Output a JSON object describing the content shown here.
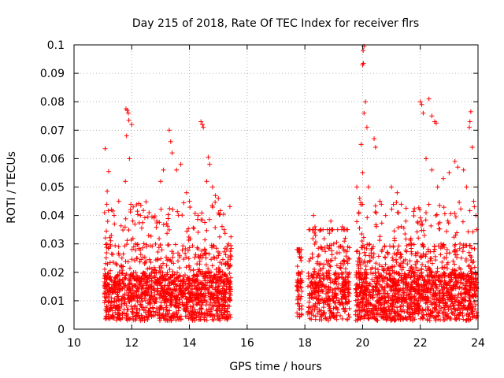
{
  "chart_data": {
    "type": "scatter",
    "title": "Day 215 of 2018, Rate Of TEC Index for receiver flrs",
    "xlabel": "GPS time / hours",
    "ylabel": "ROTI / TECUs",
    "xlim": [
      10,
      24
    ],
    "ylim": [
      0,
      0.1
    ],
    "x_ticks": [
      "10",
      "12",
      "14",
      "16",
      "18",
      "20",
      "22",
      "24"
    ],
    "y_ticks": [
      "0",
      "0.01",
      "0.02",
      "0.03",
      "0.04",
      "0.05",
      "0.06",
      "0.07",
      "0.08",
      "0.09",
      "0.1"
    ],
    "grid": true,
    "marker": "+",
    "series_color": "#ff0000",
    "series": [
      {
        "name": "ROTI",
        "points": [
          [
            11.08,
            0.0635
          ],
          [
            11.15,
            0.0485
          ],
          [
            11.2,
            0.0555
          ],
          [
            11.12,
            0.0345
          ],
          [
            11.3,
            0.042
          ],
          [
            11.55,
            0.045
          ],
          [
            11.4,
            0.037
          ],
          [
            11.8,
            0.0775
          ],
          [
            11.85,
            0.077
          ],
          [
            11.88,
            0.076
          ],
          [
            11.9,
            0.0735
          ],
          [
            12.0,
            0.072
          ],
          [
            11.82,
            0.068
          ],
          [
            11.92,
            0.06
          ],
          [
            11.78,
            0.052
          ],
          [
            12.05,
            0.043
          ],
          [
            12.3,
            0.04
          ],
          [
            12.6,
            0.041
          ],
          [
            12.7,
            0.0395
          ],
          [
            13.0,
            0.052
          ],
          [
            13.1,
            0.056
          ],
          [
            13.3,
            0.07
          ],
          [
            13.35,
            0.066
          ],
          [
            13.4,
            0.062
          ],
          [
            13.55,
            0.056
          ],
          [
            13.7,
            0.058
          ],
          [
            13.9,
            0.048
          ],
          [
            14.0,
            0.045
          ],
          [
            14.3,
            0.04
          ],
          [
            14.4,
            0.073
          ],
          [
            14.45,
            0.072
          ],
          [
            14.48,
            0.071
          ],
          [
            14.6,
            0.052
          ],
          [
            14.65,
            0.0605
          ],
          [
            14.7,
            0.058
          ],
          [
            14.8,
            0.05
          ],
          [
            14.9,
            0.047
          ],
          [
            15.0,
            0.046
          ],
          [
            15.2,
            0.035
          ],
          [
            15.35,
            0.03
          ],
          [
            17.8,
            0.027
          ],
          [
            17.85,
            0.025
          ],
          [
            17.78,
            0.019
          ],
          [
            17.8,
            0.012
          ],
          [
            17.82,
            0.008
          ],
          [
            18.3,
            0.04
          ],
          [
            18.35,
            0.036
          ],
          [
            18.6,
            0.028
          ],
          [
            18.9,
            0.038
          ],
          [
            19.0,
            0.03
          ],
          [
            19.3,
            0.036
          ],
          [
            19.4,
            0.032
          ],
          [
            19.5,
            0.025
          ],
          [
            19.8,
            0.05
          ],
          [
            19.9,
            0.046
          ],
          [
            20.0,
            0.093
          ],
          [
            20.02,
            0.098
          ],
          [
            20.05,
            0.0995
          ],
          [
            20.03,
            0.0935
          ],
          [
            20.1,
            0.08
          ],
          [
            20.05,
            0.076
          ],
          [
            20.15,
            0.071
          ],
          [
            19.95,
            0.065
          ],
          [
            20.0,
            0.055
          ],
          [
            20.2,
            0.05
          ],
          [
            20.4,
            0.067
          ],
          [
            20.45,
            0.064
          ],
          [
            20.6,
            0.045
          ],
          [
            20.8,
            0.04
          ],
          [
            21.0,
            0.05
          ],
          [
            21.2,
            0.048
          ],
          [
            21.5,
            0.038
          ],
          [
            21.7,
            0.03
          ],
          [
            22.0,
            0.08
          ],
          [
            22.05,
            0.079
          ],
          [
            22.1,
            0.076
          ],
          [
            22.3,
            0.081
          ],
          [
            22.4,
            0.075
          ],
          [
            22.5,
            0.073
          ],
          [
            22.55,
            0.0725
          ],
          [
            22.2,
            0.06
          ],
          [
            22.4,
            0.056
          ],
          [
            22.6,
            0.05
          ],
          [
            22.8,
            0.053
          ],
          [
            23.0,
            0.055
          ],
          [
            23.2,
            0.059
          ],
          [
            23.3,
            0.057
          ],
          [
            23.5,
            0.056
          ],
          [
            23.6,
            0.05
          ],
          [
            23.7,
            0.071
          ],
          [
            23.72,
            0.073
          ],
          [
            23.75,
            0.0765
          ],
          [
            23.8,
            0.064
          ],
          [
            23.85,
            0.045
          ],
          [
            23.95,
            0.035
          ],
          [
            11.5,
            0.014
          ],
          [
            12.2,
            0.01
          ],
          [
            12.8,
            0.012
          ],
          [
            13.6,
            0.009
          ],
          [
            14.2,
            0.011
          ],
          [
            15.0,
            0.013
          ],
          [
            18.5,
            0.009
          ],
          [
            19.1,
            0.011
          ],
          [
            20.5,
            0.01
          ],
          [
            21.3,
            0.008
          ],
          [
            22.7,
            0.01
          ],
          [
            23.4,
            0.009
          ]
        ]
      }
    ]
  }
}
